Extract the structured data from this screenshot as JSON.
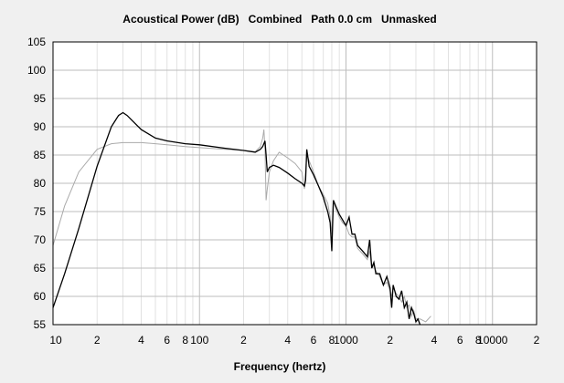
{
  "chart_data": {
    "type": "line",
    "title": "Acoustical Power (dB)   Combined   Path 0.0 cm   Unmasked",
    "xlabel": "Frequency (hertz)",
    "ylabel": "",
    "x_scale": "log",
    "xlim": [
      10,
      20000
    ],
    "ylim": [
      55,
      105
    ],
    "grid": true,
    "y_ticks": [
      55,
      60,
      65,
      70,
      75,
      80,
      85,
      90,
      95,
      100,
      105
    ],
    "x_ticks": [
      {
        "value": 10,
        "label": "10"
      },
      {
        "value": 20,
        "label": "2"
      },
      {
        "value": 40,
        "label": "4"
      },
      {
        "value": 60,
        "label": "6"
      },
      {
        "value": 80,
        "label": "8"
      },
      {
        "value": 100,
        "label": "100"
      },
      {
        "value": 200,
        "label": "2"
      },
      {
        "value": 400,
        "label": "4"
      },
      {
        "value": 600,
        "label": "6"
      },
      {
        "value": 800,
        "label": "8"
      },
      {
        "value": 1000,
        "label": "1000"
      },
      {
        "value": 2000,
        "label": "2"
      },
      {
        "value": 4000,
        "label": "4"
      },
      {
        "value": 6000,
        "label": "6"
      },
      {
        "value": 8000,
        "label": "8"
      },
      {
        "value": 10000,
        "label": "10000"
      },
      {
        "value": 20000,
        "label": "2"
      }
    ],
    "series": [
      {
        "color": "#000000",
        "x": [
          10,
          12,
          15,
          20,
          25,
          28,
          30,
          32,
          35,
          40,
          50,
          60,
          80,
          100,
          150,
          200,
          240,
          260,
          270,
          280,
          285,
          290,
          300,
          320,
          350,
          400,
          450,
          500,
          520,
          530,
          540,
          560,
          600,
          650,
          700,
          750,
          780,
          800,
          820,
          850,
          900,
          950,
          1000,
          1050,
          1100,
          1150,
          1200,
          1300,
          1400,
          1450,
          1500,
          1550,
          1600,
          1700,
          1800,
          1900,
          2000,
          2050,
          2100,
          2150,
          2200,
          2300,
          2400,
          2500,
          2600,
          2700,
          2800,
          2900,
          3000,
          3100,
          3200
        ],
        "y": [
          58,
          64,
          72,
          83,
          90,
          92,
          92.5,
          92,
          91,
          89.5,
          88,
          87.5,
          87,
          86.8,
          86.2,
          85.8,
          85.5,
          86,
          86.5,
          87.5,
          85,
          82,
          82.8,
          83.2,
          82.8,
          81.8,
          80.8,
          80,
          79.5,
          80.5,
          86,
          83,
          81.5,
          79.5,
          77.5,
          75,
          73,
          68,
          77,
          76,
          74.5,
          73.5,
          72.5,
          74,
          71,
          71,
          69,
          68,
          67,
          70,
          65,
          66,
          64,
          64,
          62,
          63.5,
          61.5,
          58,
          62,
          61,
          60,
          59.5,
          61,
          58,
          59,
          56,
          58,
          57,
          55.5,
          56,
          55
        ]
      },
      {
        "color": "#aaaaaa",
        "x": [
          10,
          12,
          15,
          20,
          25,
          30,
          40,
          50,
          60,
          80,
          100,
          150,
          200,
          240,
          260,
          270,
          275,
          280,
          285,
          290,
          300,
          320,
          350,
          400,
          450,
          500,
          520,
          530,
          540,
          560,
          600,
          650,
          700,
          750,
          780,
          800,
          820,
          850,
          900,
          950,
          1000,
          1050,
          1100,
          1150,
          1200,
          1300,
          1400,
          1450,
          1500,
          1550,
          1600,
          1700,
          1800,
          1900,
          2000,
          2050,
          2100,
          2200,
          2300,
          2400,
          2500,
          2600,
          2700,
          2800,
          2900,
          3000,
          3200,
          3500,
          3800
        ],
        "y": [
          69,
          76,
          82,
          86,
          87,
          87.2,
          87.2,
          87,
          86.8,
          86.5,
          86.3,
          86,
          85.8,
          85.6,
          86.5,
          88,
          89.5,
          86,
          77,
          79,
          82,
          84,
          85.5,
          84.5,
          83.5,
          82,
          79,
          82,
          85,
          84,
          82,
          79.5,
          78,
          76.5,
          74,
          71,
          77,
          75.5,
          74,
          73,
          72.5,
          71,
          70.5,
          70.5,
          68.5,
          67.5,
          66.5,
          68,
          65,
          65.5,
          64.5,
          63.5,
          62,
          62.5,
          61,
          60,
          61.5,
          60.5,
          60,
          59,
          60,
          58,
          58.5,
          56.5,
          57.5,
          56,
          56,
          55.5,
          56.5
        ]
      }
    ]
  }
}
